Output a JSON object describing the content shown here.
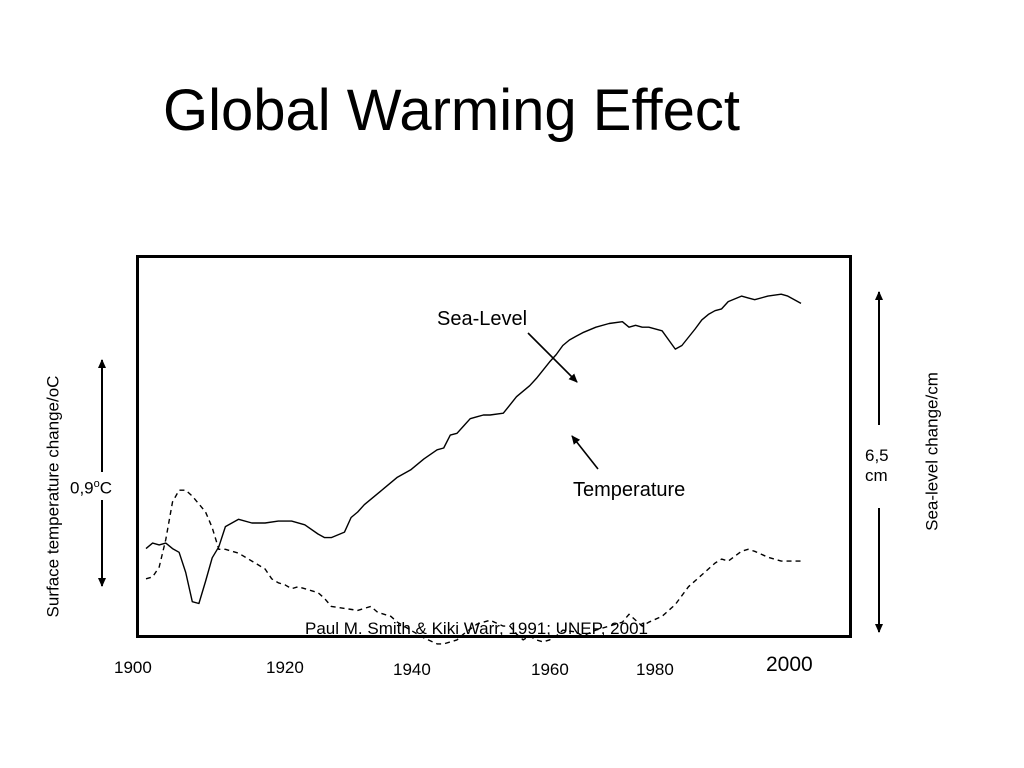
{
  "slide": {
    "title": "Global Warming Effect"
  },
  "chart_data": {
    "type": "line",
    "title": "Global Warming Effect",
    "x_tick_labels": [
      "1900",
      "1920",
      "1940",
      "1960",
      "1980",
      "2000"
    ],
    "left_axis_label": "Surface temperature change/oC",
    "right_axis_label": "Sea-level change/cm",
    "left_scale": {
      "label_number": "0,9",
      "label_unit_sup": "o",
      "label_unit": "C"
    },
    "right_scale": {
      "label_line1": "6,5",
      "label_line2": "cm"
    },
    "source_note": "Paul M. Smith & Kiki Warr, 1991; UNEP, 2001",
    "grid": false,
    "series": [
      {
        "name": "Sea-Level",
        "style": "solid",
        "color": "#000000",
        "x": [
          1900,
          1901,
          1902,
          1903,
          1904,
          1905,
          1906,
          1907,
          1908,
          1909,
          1910,
          1911,
          1912,
          1914,
          1916,
          1918,
          1920,
          1922,
          1924,
          1926,
          1927,
          1928,
          1930,
          1931,
          1932,
          1933,
          1935,
          1936,
          1938,
          1940,
          1942,
          1944,
          1945,
          1946,
          1947,
          1948,
          1949,
          1950,
          1951,
          1952,
          1954,
          1956,
          1957,
          1958,
          1959,
          1961,
          1962,
          1963,
          1964,
          1965,
          1966,
          1968,
          1970,
          1972,
          1973,
          1974,
          1975,
          1976,
          1978,
          1980,
          1981,
          1983,
          1984,
          1985,
          1986,
          1987,
          1988,
          1990,
          1991,
          1992,
          1994,
          1996,
          1997,
          1998,
          1999
        ],
        "values": [
          0.0,
          0.3,
          0.2,
          0.3,
          0.0,
          -0.2,
          -1.3,
          -2.9,
          -3.0,
          -1.8,
          -0.5,
          0.1,
          1.2,
          1.6,
          1.4,
          1.4,
          1.5,
          1.5,
          1.3,
          0.8,
          0.6,
          0.6,
          0.9,
          1.7,
          2.0,
          2.4,
          3.0,
          3.3,
          3.9,
          4.3,
          4.9,
          5.4,
          5.5,
          6.2,
          6.3,
          6.7,
          7.1,
          7.2,
          7.3,
          7.3,
          7.4,
          8.3,
          8.6,
          8.9,
          9.3,
          10.2,
          10.6,
          11.1,
          11.4,
          11.6,
          11.8,
          12.1,
          12.3,
          12.4,
          12.1,
          12.2,
          12.1,
          12.1,
          11.9,
          10.9,
          11.1,
          12.0,
          12.5,
          12.8,
          13.0,
          13.1,
          13.5,
          13.8,
          13.7,
          13.6,
          13.8,
          13.9,
          13.8,
          13.6,
          13.4
        ]
      },
      {
        "name": "Temperature",
        "style": "dashed",
        "color": "#000000",
        "x": [
          1900,
          1901,
          1902,
          1903,
          1904,
          1905,
          1906,
          1907,
          1908,
          1909,
          1910,
          1911,
          1912,
          1913,
          1914,
          1916,
          1918,
          1919,
          1920,
          1921,
          1922,
          1923,
          1925,
          1926,
          1927,
          1928,
          1930,
          1932,
          1934,
          1935,
          1937,
          1938,
          1940,
          1942,
          1944,
          1945,
          1947,
          1948,
          1950,
          1952,
          1954,
          1955,
          1956,
          1957,
          1958,
          1959,
          1960,
          1961,
          1962,
          1963,
          1965,
          1966,
          1968,
          1970,
          1972,
          1973,
          1975,
          1976,
          1978,
          1980,
          1982,
          1984,
          1986,
          1987,
          1988,
          1990,
          1991,
          1992,
          1994,
          1996,
          1997,
          1998,
          1999
        ],
        "values": [
          -0.42,
          -0.41,
          -0.36,
          -0.22,
          -0.03,
          0.03,
          0.03,
          0.0,
          -0.04,
          -0.08,
          -0.16,
          -0.27,
          -0.27,
          -0.28,
          -0.29,
          -0.33,
          -0.37,
          -0.42,
          -0.44,
          -0.45,
          -0.47,
          -0.46,
          -0.48,
          -0.49,
          -0.52,
          -0.56,
          -0.57,
          -0.58,
          -0.56,
          -0.59,
          -0.61,
          -0.64,
          -0.68,
          -0.72,
          -0.75,
          -0.75,
          -0.73,
          -0.7,
          -0.65,
          -0.63,
          -0.66,
          -0.66,
          -0.7,
          -0.73,
          -0.71,
          -0.73,
          -0.74,
          -0.73,
          -0.71,
          -0.68,
          -0.69,
          -0.71,
          -0.68,
          -0.66,
          -0.64,
          -0.6,
          -0.66,
          -0.64,
          -0.61,
          -0.55,
          -0.46,
          -0.4,
          -0.34,
          -0.32,
          -0.33,
          -0.28,
          -0.27,
          -0.28,
          -0.31,
          -0.33,
          -0.33,
          -0.33,
          -0.33
        ]
      }
    ]
  },
  "annotations": {
    "sea_level_label": "Sea-Level",
    "temperature_label": "Temperature"
  }
}
